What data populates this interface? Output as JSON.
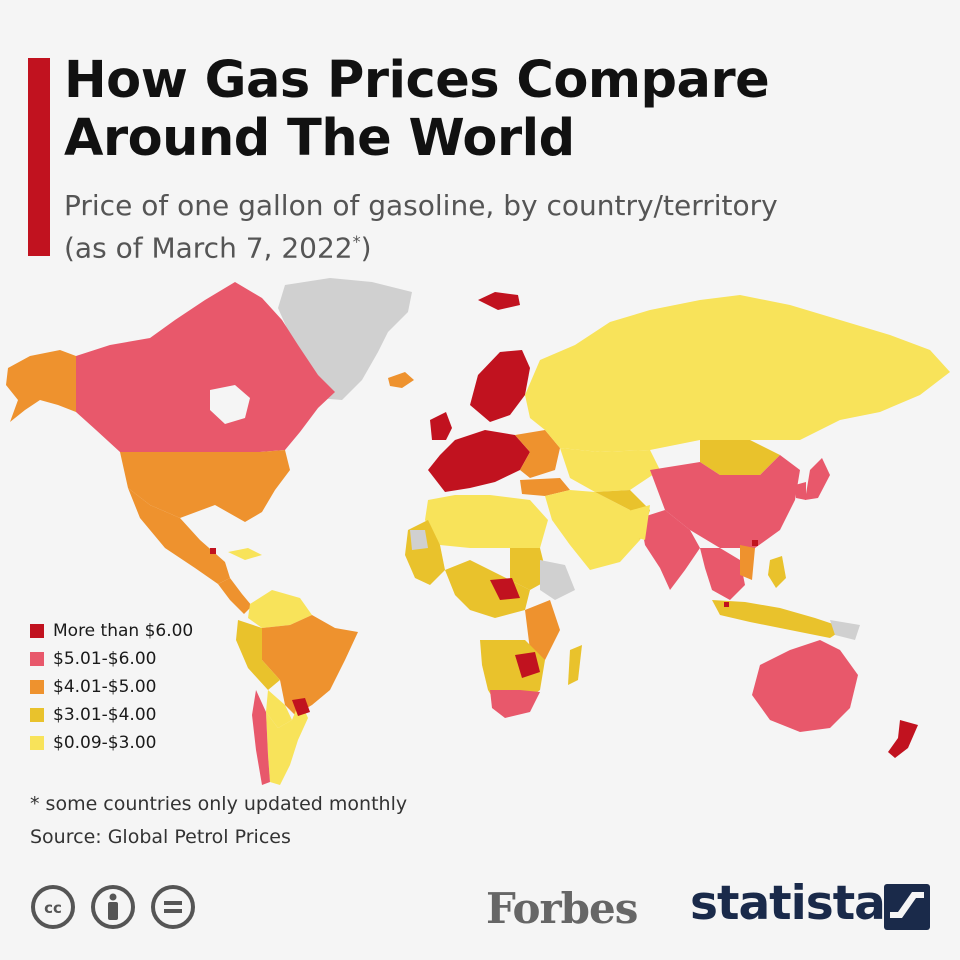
{
  "header": {
    "title_line1": "How Gas Prices Compare",
    "title_line2": "Around The World",
    "subtitle_line1": "Price of one gallon of gasoline, by country/territory",
    "subtitle_line2": "(as of March 7, 2022",
    "subtitle_asterisk": "*",
    "subtitle_close": ")"
  },
  "legend": {
    "items": [
      {
        "label": "More than $6.00",
        "color": "#c1121f"
      },
      {
        "label": "$5.01-$6.00",
        "color": "#e8586b"
      },
      {
        "label": "$4.01-$5.00",
        "color": "#ee922e"
      },
      {
        "label": "$3.01-$4.00",
        "color": "#e9c22c"
      },
      {
        "label": "$0.09-$3.00",
        "color": "#f8e35a"
      }
    ]
  },
  "colors": {
    "accent": "#c1121f",
    "no_data": "#d0d0d0"
  },
  "footer": {
    "footnote": "* some countries only updated monthly",
    "source": "Source: Global Petrol Prices",
    "forbes": "Forbes",
    "statista": "statista"
  }
}
